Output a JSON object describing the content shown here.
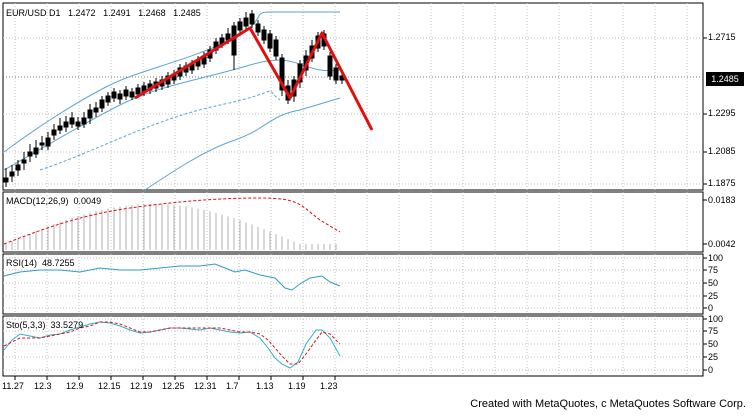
{
  "main_chart": {
    "symbol_label": "EUR/USD D1",
    "open": "1.2472",
    "high": "1.2491",
    "low": "1.2468",
    "close": "1.2485",
    "current_price": "1.2485",
    "y_ticks": [
      "1.2715",
      "1.2295",
      "1.2085",
      "1.1875"
    ]
  },
  "macd": {
    "label": "MACD(12,26,9)",
    "value": "0.0049",
    "y_ticks": [
      "0.0183",
      "0.0042"
    ]
  },
  "rsi": {
    "label": "RSI(14)",
    "value": "48.7255",
    "y_ticks": [
      "100",
      "75",
      "50",
      "25",
      "0"
    ]
  },
  "stoch": {
    "label": "Sto(5,3,3)",
    "value": "33.5279",
    "y_ticks": [
      "100",
      "75",
      "50",
      "25",
      "0"
    ]
  },
  "x_ticks": [
    "11.27",
    "12.3",
    "12.9",
    "12.15",
    "12.19",
    "12.25",
    "12.31",
    "1.7",
    "1.13",
    "1.19",
    "1.23"
  ],
  "footer": {
    "credit": "Created with MetaQuotes, c MetaQuotes Software Corp."
  },
  "colors": {
    "band": "#5aa5d0",
    "pattern": "#e01010",
    "macd_signal": "#e01010",
    "macd_hist": "#b0b0b0",
    "rsi_line": "#2f9bc8",
    "stoch_main": "#2fb0c8",
    "stoch_signal": "#e01010",
    "grid": "#c0c0c0"
  },
  "chart_data": [
    {
      "type": "line",
      "title": "EUR/USD D1",
      "ylim": [
        1.18,
        1.29
      ],
      "x": [
        "11.27",
        "12.3",
        "12.9",
        "12.15",
        "12.19",
        "12.25",
        "12.31",
        "1.7",
        "1.13",
        "1.19",
        "1.23"
      ],
      "series": [],
      "annotations": "hand-drawn red zig-zag (head and shoulders / double top) pattern"
    },
    {
      "type": "bar",
      "title": "MACD(12,26,9)",
      "ylim": [
        0.0042,
        0.0183
      ]
    },
    {
      "type": "line",
      "title": "RSI(14)",
      "ylim": [
        0,
        100
      ]
    },
    {
      "type": "line",
      "title": "Sto(5,3,3)",
      "ylim": [
        0,
        100
      ]
    }
  ]
}
